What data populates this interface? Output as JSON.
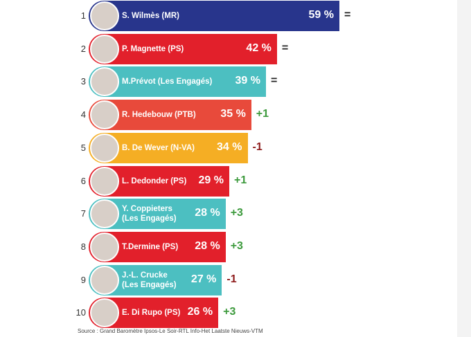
{
  "chart_data": {
    "type": "bar",
    "orientation": "horizontal",
    "ranks": [
      "1",
      "2",
      "3",
      "4",
      "5",
      "6",
      "7",
      "8",
      "9",
      "10"
    ],
    "categories": [
      "S. Wilmès (MR)",
      "P. Magnette (PS)",
      "M.Prévot (Les Engagés)",
      "R. Hedebouw (PTB)",
      "B. De Wever (N-VA)",
      "L. Dedonder (PS)",
      "Y. Coppieters\n(Les Engagés)",
      "T.Dermine (PS)",
      "J.-L. Crucke\n(Les Engagés)",
      "E. Di Rupo (PS)"
    ],
    "values": [
      59,
      42,
      39,
      35,
      34,
      29,
      28,
      28,
      27,
      26
    ],
    "value_labels": [
      "59 %",
      "42 %",
      "39 %",
      "35 %",
      "34 %",
      "29 %",
      "28 %",
      "28 %",
      "27 %",
      "26 %"
    ],
    "colors": [
      "#28358c",
      "#e2202b",
      "#4cbfc1",
      "#e84a3b",
      "#f5ae24",
      "#e2202b",
      "#4cbfc1",
      "#e2202b",
      "#4cbfc1",
      "#e2202b"
    ],
    "changes": [
      "=",
      "=",
      "=",
      "+1",
      "-1",
      "+1",
      "+3",
      "+3",
      "-1",
      "+3"
    ],
    "change_colors": [
      "#222222",
      "#222222",
      "#222222",
      "#3c9a3c",
      "#8e1b1b",
      "#3c9a3c",
      "#3c9a3c",
      "#3c9a3c",
      "#8e1b1b",
      "#3c9a3c"
    ],
    "source": "Source : Grand Baromètre Ipsos-Le Soir-RTL Info-Het Laatste Nieuws-VTM"
  }
}
